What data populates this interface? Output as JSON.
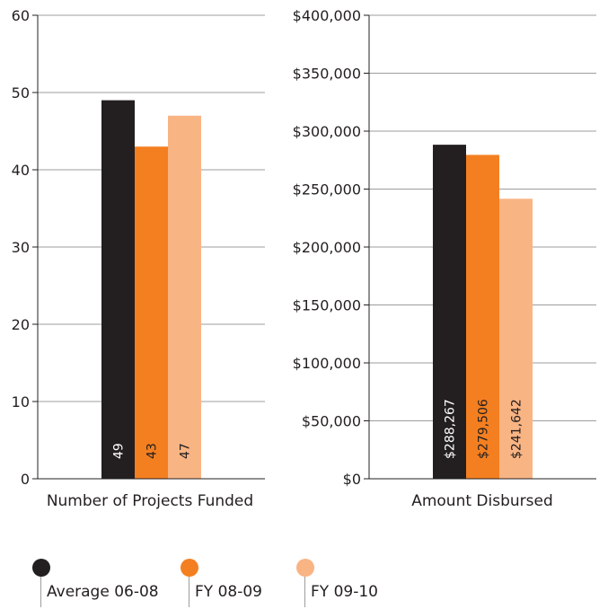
{
  "chart_data": [
    {
      "type": "bar",
      "categories": [
        "Number of Projects Funded"
      ],
      "series": [
        {
          "name": "Average 06-08",
          "values": [
            49
          ],
          "labels": [
            "49"
          ]
        },
        {
          "name": "FY 08-09",
          "values": [
            43
          ],
          "labels": [
            "43"
          ]
        },
        {
          "name": "FY 09-10",
          "values": [
            47
          ],
          "labels": [
            "47"
          ]
        }
      ],
      "ylim": [
        0,
        60
      ],
      "yticks": [
        "0",
        "10",
        "20",
        "30",
        "40",
        "50",
        "60"
      ],
      "xlabel": "",
      "ylabel": "",
      "grid": true
    },
    {
      "type": "bar",
      "categories": [
        "Amount Disbursed"
      ],
      "series": [
        {
          "name": "Average 06-08",
          "values": [
            288267
          ],
          "labels": [
            "$288,267"
          ]
        },
        {
          "name": "FY 08-09",
          "values": [
            279506
          ],
          "labels": [
            "$279,506"
          ]
        },
        {
          "name": "FY 09-10",
          "values": [
            241642
          ],
          "labels": [
            "$241,642"
          ]
        }
      ],
      "ylim": [
        0,
        400000
      ],
      "yticks": [
        "$0",
        "$50,000",
        "$100,000",
        "$150,000",
        "$200,000",
        "$250,000",
        "$300,000",
        "$350,000",
        "$400,000"
      ],
      "xlabel": "",
      "ylabel": "",
      "grid": true
    }
  ],
  "legend": {
    "placement": "bottom",
    "items": [
      {
        "label": "Average 06-08",
        "color": "#231f20"
      },
      {
        "label": "FY 08-09",
        "color": "#f47f20"
      },
      {
        "label": "FY 09-10",
        "color": "#f9b483"
      }
    ]
  },
  "colors": {
    "series": [
      "#231f20",
      "#f47f20",
      "#f9b483"
    ],
    "label_text": [
      "#ffffff",
      "#231f20",
      "#231f20"
    ],
    "grid": "#9d9d9d",
    "axis": "#231f20"
  }
}
